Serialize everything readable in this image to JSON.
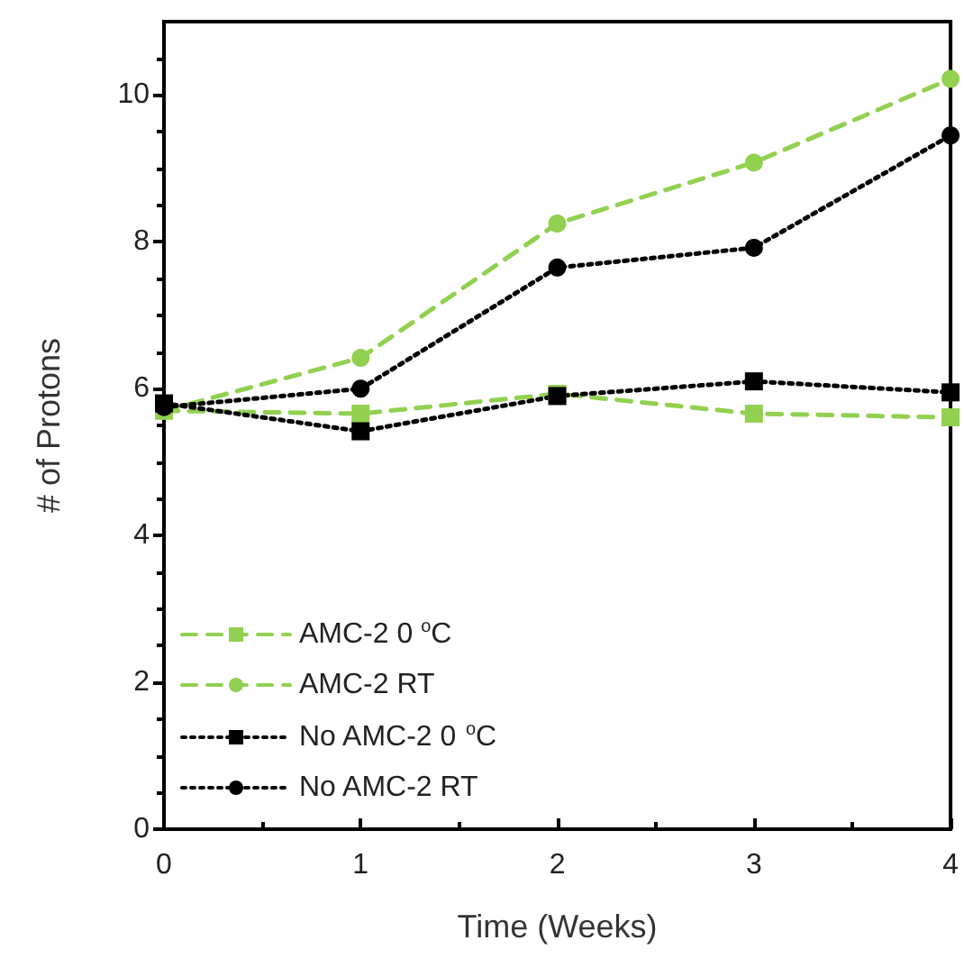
{
  "chart_data": {
    "type": "line",
    "xlabel": "Time (Weeks)",
    "ylabel": "# of Protons",
    "x": [
      0,
      1,
      2,
      3,
      4
    ],
    "xlim": [
      0,
      4
    ],
    "xticks": [
      0,
      1,
      2,
      3,
      4
    ],
    "ylim": [
      0,
      11
    ],
    "yticks": [
      0,
      2,
      4,
      6,
      8,
      10
    ],
    "grid": false,
    "legend": "bottom left",
    "series": [
      {
        "name": "AMC-2 0 $^{o}$C",
        "color": "#92d050",
        "marker": "square",
        "line_style": "dashed",
        "values": [
          5.7,
          5.66,
          5.93,
          5.66,
          5.61
        ]
      },
      {
        "name": "AMC-2 RT",
        "color": "#92d050",
        "marker": "circle",
        "line_style": "dashed",
        "values": [
          5.7,
          6.42,
          8.25,
          9.08,
          10.22
        ]
      },
      {
        "name": "No AMC-2 0 $^{o}$C",
        "color": "#000000",
        "marker": "square",
        "line_style": "dotted",
        "values": [
          5.8,
          5.42,
          5.9,
          6.1,
          5.95
        ]
      },
      {
        "name": "No AMC-2 RT",
        "color": "#000000",
        "marker": "circle",
        "line_style": "dotted",
        "values": [
          5.75,
          6.0,
          7.65,
          7.92,
          9.45
        ]
      }
    ]
  }
}
